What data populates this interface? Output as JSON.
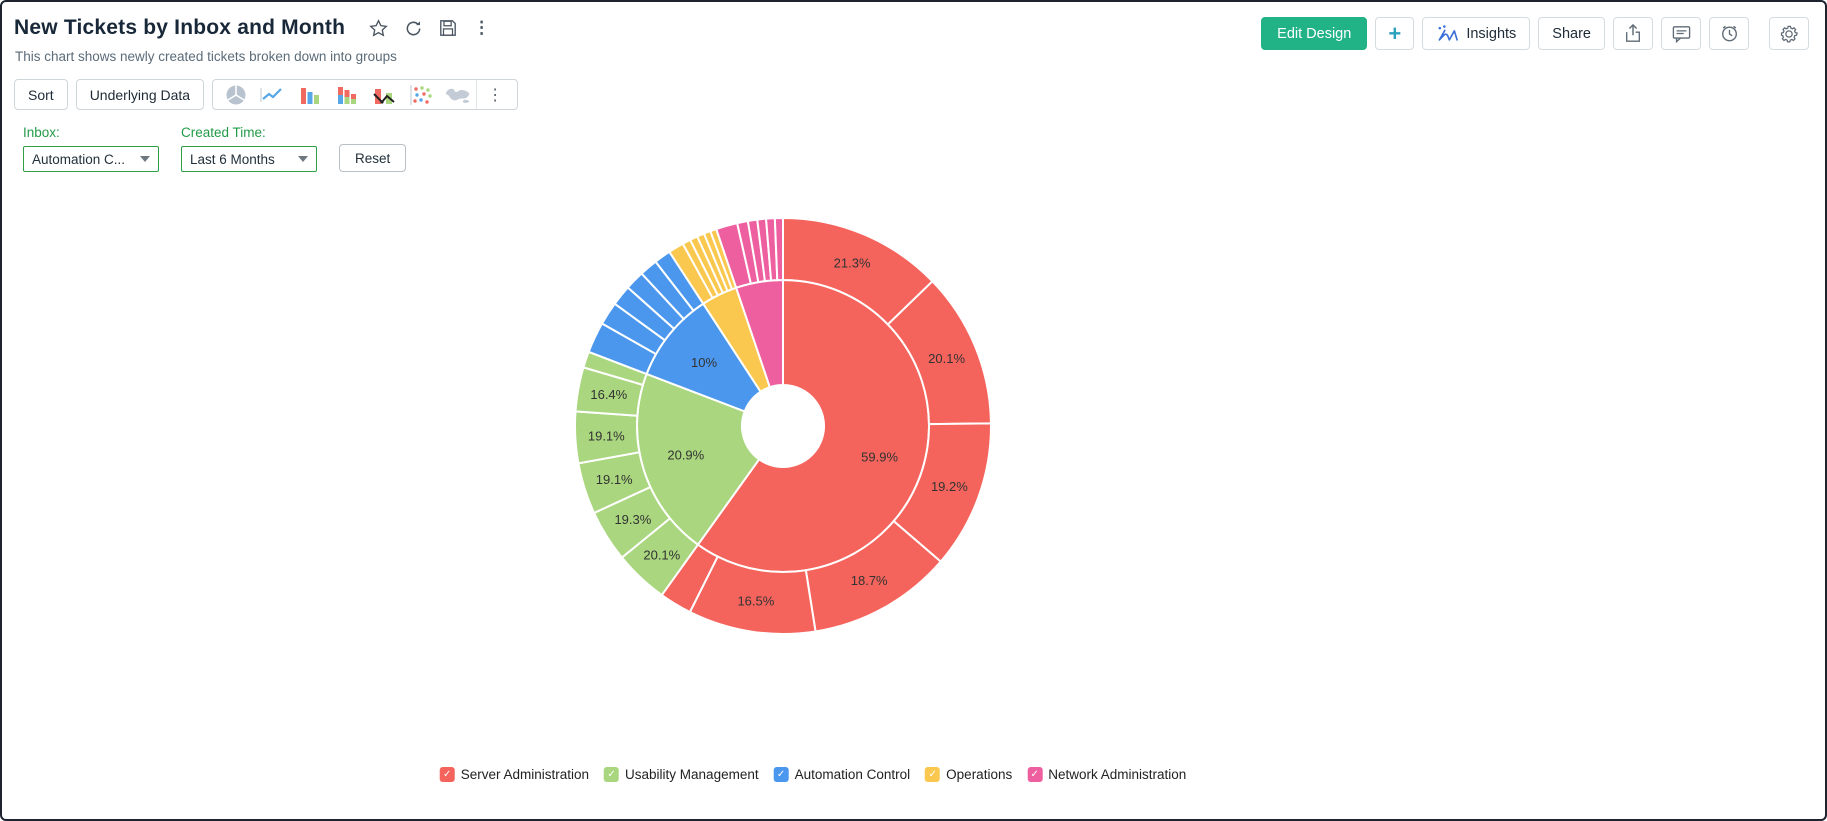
{
  "header": {
    "title": "New Tickets by Inbox and Month",
    "subtitle": "This chart shows newly created tickets broken down into groups",
    "actions": {
      "edit_design": "Edit Design",
      "add": "+",
      "insights": "Insights",
      "share": "Share"
    }
  },
  "toolbar": {
    "sort": "Sort",
    "underlying_data": "Underlying Data",
    "more": "⋮"
  },
  "title_icons": {
    "more": "⋮"
  },
  "filters": {
    "inbox": {
      "label": "Inbox:",
      "value": "Automation C..."
    },
    "created_time": {
      "label": "Created Time:",
      "value": "Last 6 Months"
    },
    "reset": "Reset"
  },
  "colors": {
    "accent_button": "#21b385",
    "filter_green": "#2f9e44",
    "plus_teal": "#2aa2be"
  },
  "chart_data": {
    "type": "pie",
    "subtype": "sunburst-two-ring",
    "title": "New Tickets by Inbox and Month",
    "units": "percent",
    "legend_position": "bottom",
    "rings": {
      "hole_radius": 41,
      "inner_ring_outer_radius": 146,
      "outer_ring_outer_radius": 208
    },
    "note": "inner ring = % of total per inbox; outer ring children = % of parent (months)",
    "series": [
      {
        "name": "Server Administration",
        "color": "#F5645C",
        "pct": 59.9,
        "label": "59.9%",
        "children": [
          {
            "pct": 21.3,
            "label": "21.3%"
          },
          {
            "pct": 20.1,
            "label": "20.1%"
          },
          {
            "pct": 19.2,
            "label": "19.2%"
          },
          {
            "pct": 18.7,
            "label": "18.7%"
          },
          {
            "pct": 16.5,
            "label": "16.5%"
          },
          {
            "pct": 4.2,
            "label": ""
          }
        ]
      },
      {
        "name": "Usability Management",
        "color": "#A9D67E",
        "pct": 20.9,
        "label": "20.9%",
        "children": [
          {
            "pct": 20.1,
            "label": "20.1%"
          },
          {
            "pct": 19.3,
            "label": "19.3%"
          },
          {
            "pct": 19.1,
            "label": "19.1%"
          },
          {
            "pct": 19.1,
            "label": "19.1%"
          },
          {
            "pct": 16.4,
            "label": "16.4%"
          },
          {
            "pct": 6.0,
            "label": ""
          }
        ]
      },
      {
        "name": "Automation Control",
        "color": "#4C97EE",
        "pct": 10,
        "label": "10%",
        "children": [
          {
            "pct": 24,
            "label": ""
          },
          {
            "pct": 18,
            "label": ""
          },
          {
            "pct": 16,
            "label": ""
          },
          {
            "pct": 15,
            "label": ""
          },
          {
            "pct": 14,
            "label": ""
          },
          {
            "pct": 13,
            "label": ""
          }
        ]
      },
      {
        "name": "Operations",
        "color": "#FAC84F",
        "pct": 4.0,
        "label": "",
        "children": [
          {
            "pct": 30,
            "label": ""
          },
          {
            "pct": 16,
            "label": ""
          },
          {
            "pct": 15,
            "label": ""
          },
          {
            "pct": 14,
            "label": ""
          },
          {
            "pct": 13,
            "label": ""
          },
          {
            "pct": 12,
            "label": ""
          }
        ]
      },
      {
        "name": "Network Administration",
        "color": "#EE5F9F",
        "pct": 5.2,
        "label": "",
        "children": [
          {
            "pct": 32,
            "label": ""
          },
          {
            "pct": 16,
            "label": ""
          },
          {
            "pct": 14,
            "label": ""
          },
          {
            "pct": 13,
            "label": ""
          },
          {
            "pct": 13,
            "label": ""
          },
          {
            "pct": 12,
            "label": ""
          }
        ]
      }
    ]
  }
}
